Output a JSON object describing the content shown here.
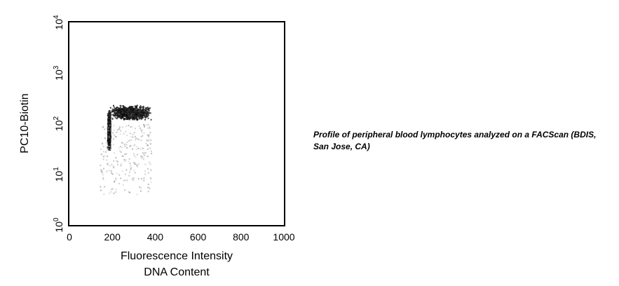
{
  "chart_data": {
    "type": "scatter",
    "title": "",
    "xlabel": "Fluorescence Intensity",
    "xlabel2": "DNA Content",
    "ylabel": "PC10-Biotin",
    "xlim": [
      0,
      1000
    ],
    "ylim": [
      1,
      10000
    ],
    "yscale": "log",
    "xticks": [
      "0",
      "200",
      "400",
      "600",
      "800",
      "1000"
    ],
    "yticks": [
      {
        "base": "10",
        "exp": "0"
      },
      {
        "base": "10",
        "exp": "1"
      },
      {
        "base": "10",
        "exp": "2"
      },
      {
        "base": "10",
        "exp": "3"
      },
      {
        "base": "10",
        "exp": "4"
      }
    ],
    "grid": false,
    "density_regions": [
      {
        "name": "dense G1 band",
        "x": [
          175,
          190
        ],
        "y": [
          30,
          200
        ],
        "density": "high"
      },
      {
        "name": "dense top band",
        "x": [
          185,
          380
        ],
        "y": [
          120,
          240
        ],
        "density": "high"
      },
      {
        "name": "sparse lower cloud",
        "x": [
          140,
          380
        ],
        "y": [
          4,
          100
        ],
        "density": "low"
      }
    ]
  },
  "caption": "Profile of peripheral blood lymphocytes analyzed on a FACScan (BDIS, San Jose, CA)"
}
